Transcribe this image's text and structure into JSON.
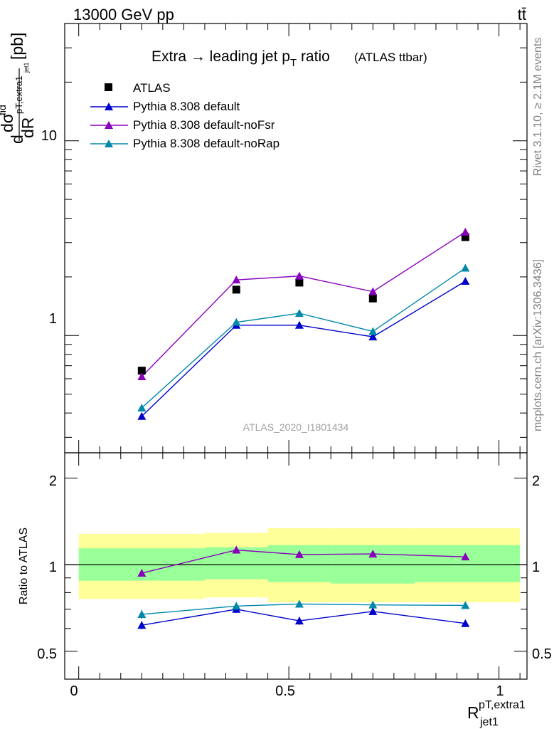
{
  "header": {
    "left": "13000 GeV pp",
    "right": "tt̄"
  },
  "side_labels": {
    "rivet": "Rivet 3.1.10, ≥ 2.1M events",
    "mcplots": "mcplots.cern.ch [arXiv:1306.3436]"
  },
  "chart_data": [
    {
      "type": "line",
      "title": "Extra → leading jet p_T ratio",
      "title_parts": {
        "main": "Extra → leading jet p",
        "sub": "T",
        "after": " ratio",
        "small": "(ATLAS ttbar)"
      },
      "ylabel": "dσ^fid / dR^{pT,extra1}_{jet1} [pb]",
      "ylabel_parts": {
        "d1": "d",
        "sigma": "dσ",
        "fid": "fid",
        "pT": "pT,extra1",
        "jet1": "jet1",
        "dR": "dR",
        "unit": "[pb]"
      },
      "watermark": "ATLAS_2020_I1801434",
      "yscale": "log",
      "xlim": [
        -0.0333,
        1.0667
      ],
      "ylim": [
        0.25,
        40
      ],
      "y_tick_labels": [
        "1",
        "10"
      ],
      "x": [
        0.15,
        0.375,
        0.525,
        0.7,
        0.92
      ],
      "bin_edges": [
        0.0,
        0.3,
        0.45,
        0.6,
        0.8,
        1.05
      ],
      "series": [
        {
          "name": "ATLAS",
          "values": [
            0.66,
            1.72,
            1.87,
            1.55,
            3.2
          ],
          "color": "#000000",
          "marker": "square"
        },
        {
          "name": "Pythia 8.308 default",
          "values": [
            0.385,
            1.13,
            1.13,
            0.985,
            1.9
          ],
          "color": "#0000cc",
          "marker": "triangle"
        },
        {
          "name": "Pythia 8.308 default-noFsr",
          "values": [
            0.615,
            1.93,
            2.02,
            1.68,
            3.4
          ],
          "color": "#8800bb",
          "marker": "triangle"
        },
        {
          "name": "Pythia 8.308 default-noRap",
          "values": [
            0.425,
            1.17,
            1.3,
            1.05,
            2.22
          ],
          "color": "#0088aa",
          "marker": "triangle"
        }
      ],
      "legend_position": "top-left"
    },
    {
      "type": "line",
      "ylabel": "Ratio to ATLAS",
      "xlabel": "R^{pT,extra1}_{jet1}",
      "xlabel_parts": {
        "main": "R",
        "sup": "pT,extra1",
        "sub": "jet1"
      },
      "yscale": "log",
      "xlim": [
        -0.0333,
        1.0667
      ],
      "ylim": [
        0.4,
        2.45
      ],
      "x_tick_labels": [
        "0",
        "0.5",
        "1"
      ],
      "y_tick_labels": [
        "0.5",
        "1",
        "2"
      ],
      "x": [
        0.15,
        0.375,
        0.525,
        0.7,
        0.92
      ],
      "bands": {
        "edges": [
          0.0,
          0.3,
          0.45,
          0.6,
          0.8,
          1.05
        ],
        "outer": [
          [
            0.76,
            1.28
          ],
          [
            0.77,
            1.29
          ],
          [
            0.74,
            1.34
          ],
          [
            0.74,
            1.34
          ],
          [
            0.74,
            1.34
          ]
        ],
        "inner": [
          [
            0.88,
            1.14
          ],
          [
            0.89,
            1.15
          ],
          [
            0.87,
            1.17
          ],
          [
            0.86,
            1.17
          ],
          [
            0.87,
            1.17
          ]
        ],
        "outer_color": "#ffff99",
        "inner_color": "#99ff99"
      },
      "series": [
        {
          "name": "Pythia 8.308 default",
          "values": [
            0.616,
            0.7,
            0.638,
            0.688,
            0.625
          ],
          "errors": [
            0.02,
            0.02,
            0.02,
            0.018,
            0.012
          ],
          "color": "#0000cc"
        },
        {
          "name": "Pythia 8.308 default-noFsr",
          "values": [
            0.935,
            1.125,
            1.085,
            1.09,
            1.065
          ],
          "errors": [
            0.025,
            0.025,
            0.02,
            0.018,
            0.012
          ],
          "color": "#8800bb"
        },
        {
          "name": "Pythia 8.308 default-noRap",
          "values": [
            0.672,
            0.718,
            0.73,
            0.725,
            0.722
          ],
          "errors": [
            0.025,
            0.02,
            0.018,
            0.018,
            0.01
          ],
          "color": "#0088aa"
        }
      ]
    }
  ]
}
